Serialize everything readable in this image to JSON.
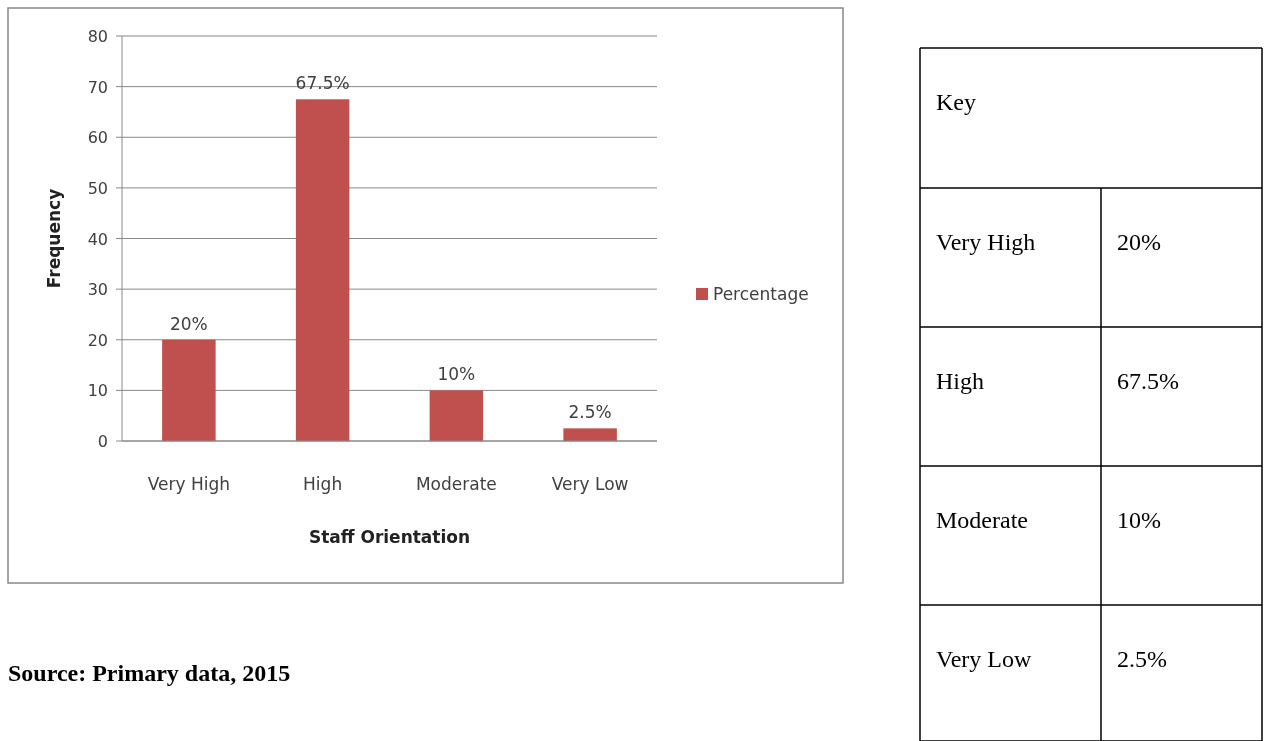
{
  "chart_data": {
    "type": "bar",
    "xlabel": "Staff Orientation",
    "ylabel": "Frequency",
    "categories": [
      "Very High",
      "High",
      "Moderate",
      "Very Low"
    ],
    "series": [
      {
        "name": "Percentage",
        "color": "#c0504d",
        "values": [
          20,
          67.5,
          10,
          2.5
        ],
        "value_labels": [
          "20%",
          "67.5%",
          "10%",
          "2.5%"
        ]
      }
    ],
    "ylim": [
      0,
      80
    ],
    "yticks": [
      0,
      10,
      20,
      30,
      40,
      50,
      60,
      70,
      80
    ],
    "grid": "y",
    "legend": "right",
    "annotations": [
      "Key",
      "Source: Primary data, 2015"
    ]
  }
}
